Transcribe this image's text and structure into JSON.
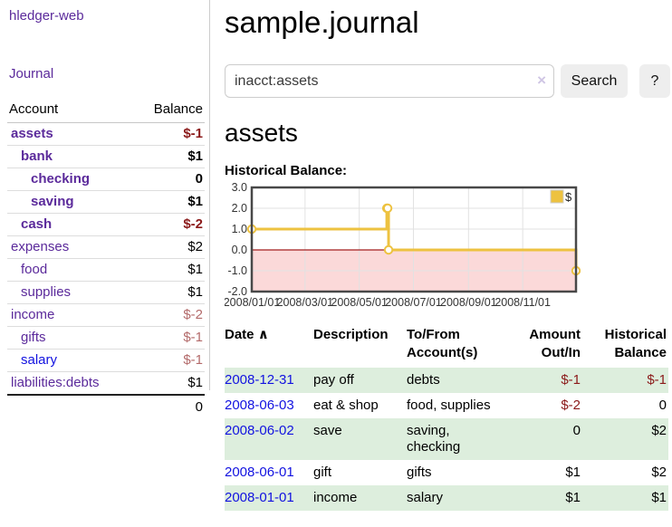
{
  "colors": {
    "link_purple": "#5b2a9b",
    "link_blue": "#1212e0",
    "negative_strong": "#8b1a1a",
    "negative_muted": "#b36a6a",
    "row_green": "#ddeedd",
    "button_gray": "#eeeeee",
    "chart_line": "#edc240",
    "chart_negative_fill": "#fbd9d9",
    "chart_zero_line": "#a21f1f"
  },
  "app": {
    "title": "hledger-web"
  },
  "sidebar": {
    "journal_link": "Journal",
    "accounts": {
      "header_account": "Account",
      "header_balance": "Balance",
      "rows": [
        {
          "name": "assets",
          "level": 1,
          "bold": true,
          "balance": "$-1",
          "neg": "strong"
        },
        {
          "name": "bank",
          "level": 2,
          "bold": true,
          "balance": "$1"
        },
        {
          "name": "checking",
          "level": 3,
          "bold": true,
          "balance": "0"
        },
        {
          "name": "saving",
          "level": 3,
          "bold": true,
          "balance": "$1"
        },
        {
          "name": "cash",
          "level": 2,
          "bold": true,
          "balance": "$-2",
          "neg": "strong"
        },
        {
          "name": "expenses",
          "level": 1,
          "bold": false,
          "balance": "$2"
        },
        {
          "name": "food",
          "level": 2,
          "bold": false,
          "balance": "$1"
        },
        {
          "name": "supplies",
          "level": 2,
          "bold": false,
          "balance": "$1"
        },
        {
          "name": "income",
          "level": 1,
          "bold": false,
          "balance": "$-2",
          "neg": "muted"
        },
        {
          "name": "gifts",
          "level": 2,
          "bold": false,
          "balance": "$-1",
          "neg": "muted"
        },
        {
          "name": "salary",
          "level": 2,
          "bold": false,
          "balance": "$-1",
          "neg": "muted",
          "blue": true
        },
        {
          "name": "liabilities:debts",
          "level": 1,
          "bold": false,
          "balance": "$1"
        }
      ],
      "total": "0"
    }
  },
  "main": {
    "title": "sample.journal",
    "search": {
      "value": "inacct:assets",
      "clear_icon": "×",
      "button_label": "Search",
      "help_label": "?"
    },
    "account_heading": "assets"
  },
  "chart_data": {
    "type": "line",
    "title": "Historical Balance:",
    "x_ticks": [
      "2008/01/01",
      "2008/03/01",
      "2008/05/01",
      "2008/07/01",
      "2008/09/01",
      "2008/11/01"
    ],
    "y_ticks": [
      3,
      2,
      1,
      0,
      -1,
      -2
    ],
    "xlim": [
      "2008-01-01",
      "2008-12-31"
    ],
    "ylim": [
      -2,
      3
    ],
    "grid": true,
    "legend": {
      "label": "$",
      "position": "top-right"
    },
    "negative_region": {
      "fill": "#fbd9d9",
      "line": "#a21f1f"
    },
    "series": [
      {
        "name": "$",
        "color": "#edc240",
        "steps": true,
        "points": [
          [
            "2008-01-01",
            1
          ],
          [
            "2008-06-01",
            2
          ],
          [
            "2008-06-02",
            2
          ],
          [
            "2008-06-03",
            0
          ],
          [
            "2008-12-31",
            -1
          ]
        ]
      }
    ]
  },
  "register": {
    "headers": {
      "date": "Date",
      "description": "Description",
      "accounts": "To/From Account(s)",
      "amount": "Amount Out/In",
      "balance": "Historical Balance"
    },
    "sort_icon": "∧",
    "rows": [
      {
        "date": "2008-12-31",
        "description": "pay off",
        "accounts": "debts",
        "amount": "$-1",
        "amount_neg": true,
        "balance": "$-1",
        "balance_neg": true
      },
      {
        "date": "2008-06-03",
        "description": "eat & shop",
        "accounts": "food, supplies",
        "amount": "$-2",
        "amount_neg": true,
        "balance": "0",
        "balance_neg": false
      },
      {
        "date": "2008-06-02",
        "description": "save",
        "accounts": "saving, checking",
        "amount": "0",
        "amount_neg": false,
        "balance": "$2",
        "balance_neg": false
      },
      {
        "date": "2008-06-01",
        "description": "gift",
        "accounts": "gifts",
        "amount": "$1",
        "amount_neg": false,
        "balance": "$2",
        "balance_neg": false
      },
      {
        "date": "2008-01-01",
        "description": "income",
        "accounts": "salary",
        "amount": "$1",
        "amount_neg": false,
        "balance": "$1",
        "balance_neg": false
      }
    ]
  }
}
